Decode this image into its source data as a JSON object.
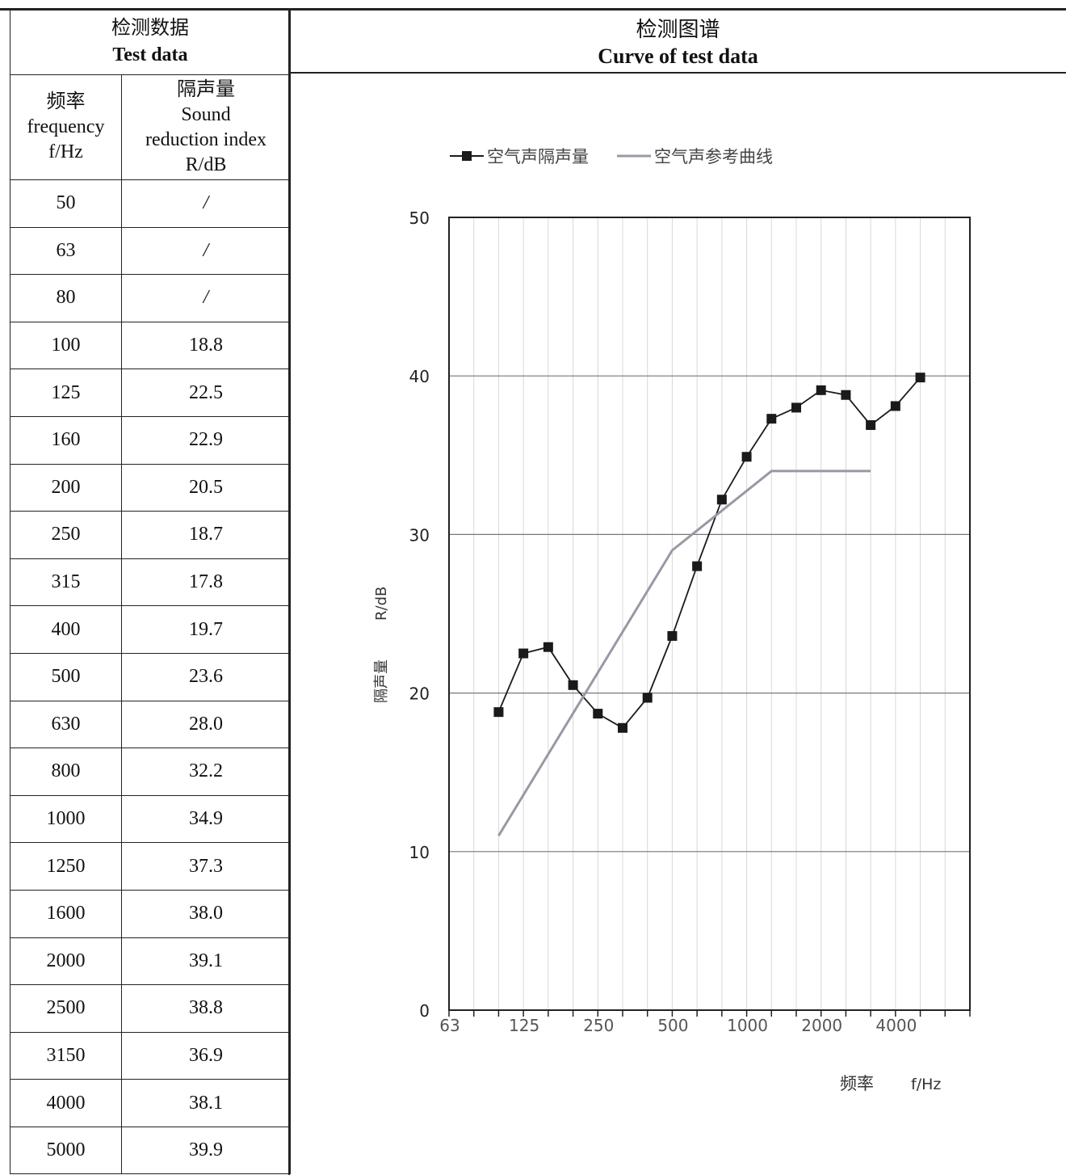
{
  "table": {
    "title_cn": "检测数据",
    "title_en": "Test data",
    "col_freq": [
      "频率",
      "frequency",
      "f/Hz"
    ],
    "col_r": [
      "隔声量",
      "Sound",
      "reduction index",
      "R/dB"
    ],
    "rows": [
      [
        "50",
        "/"
      ],
      [
        "63",
        "/"
      ],
      [
        "80",
        "/"
      ],
      [
        "100",
        "18.8"
      ],
      [
        "125",
        "22.5"
      ],
      [
        "160",
        "22.9"
      ],
      [
        "200",
        "20.5"
      ],
      [
        "250",
        "18.7"
      ],
      [
        "315",
        "17.8"
      ],
      [
        "400",
        "19.7"
      ],
      [
        "500",
        "23.6"
      ],
      [
        "630",
        "28.0"
      ],
      [
        "800",
        "32.2"
      ],
      [
        "1000",
        "34.9"
      ],
      [
        "1250",
        "37.3"
      ],
      [
        "1600",
        "38.0"
      ],
      [
        "2000",
        "39.1"
      ],
      [
        "2500",
        "38.8"
      ],
      [
        "3150",
        "36.9"
      ],
      [
        "4000",
        "38.1"
      ],
      [
        "5000",
        "39.9"
      ]
    ]
  },
  "chart_header": {
    "title_cn": "检测图谱",
    "title_en": "Curve of test data"
  },
  "chart_data": {
    "type": "line",
    "x": [
      "50",
      "63",
      "80",
      "100",
      "125",
      "160",
      "200",
      "250",
      "315",
      "400",
      "500",
      "630",
      "800",
      "1000",
      "1250",
      "1600",
      "2000",
      "2500",
      "3150",
      "4000",
      "5000"
    ],
    "xtick_labels": [
      "63",
      "125",
      "250",
      "500",
      "1000",
      "2000",
      "4000"
    ],
    "ylim": [
      0,
      50
    ],
    "yticks": [
      0,
      10,
      20,
      30,
      40,
      50
    ],
    "ylabel_cn": "隔声量",
    "ylabel_unit": "R/dB",
    "xlabel_cn": "频率",
    "xlabel_unit": "f/Hz",
    "grid": true,
    "legend_position": "top",
    "series": [
      {
        "name": "空气声隔声量",
        "color": "#1a1a1a",
        "marker": "square",
        "values": [
          null,
          null,
          null,
          18.8,
          22.5,
          22.9,
          20.5,
          18.7,
          17.8,
          19.7,
          23.6,
          28.0,
          32.2,
          34.9,
          37.3,
          38.0,
          39.1,
          38.8,
          36.9,
          38.1,
          39.9
        ]
      },
      {
        "name": "空气声参考曲线",
        "color": "#9a98a4",
        "marker": "none",
        "values": [
          null,
          null,
          null,
          11,
          null,
          null,
          null,
          null,
          null,
          null,
          29,
          null,
          null,
          null,
          34,
          null,
          null,
          null,
          34,
          null,
          null
        ]
      }
    ]
  }
}
